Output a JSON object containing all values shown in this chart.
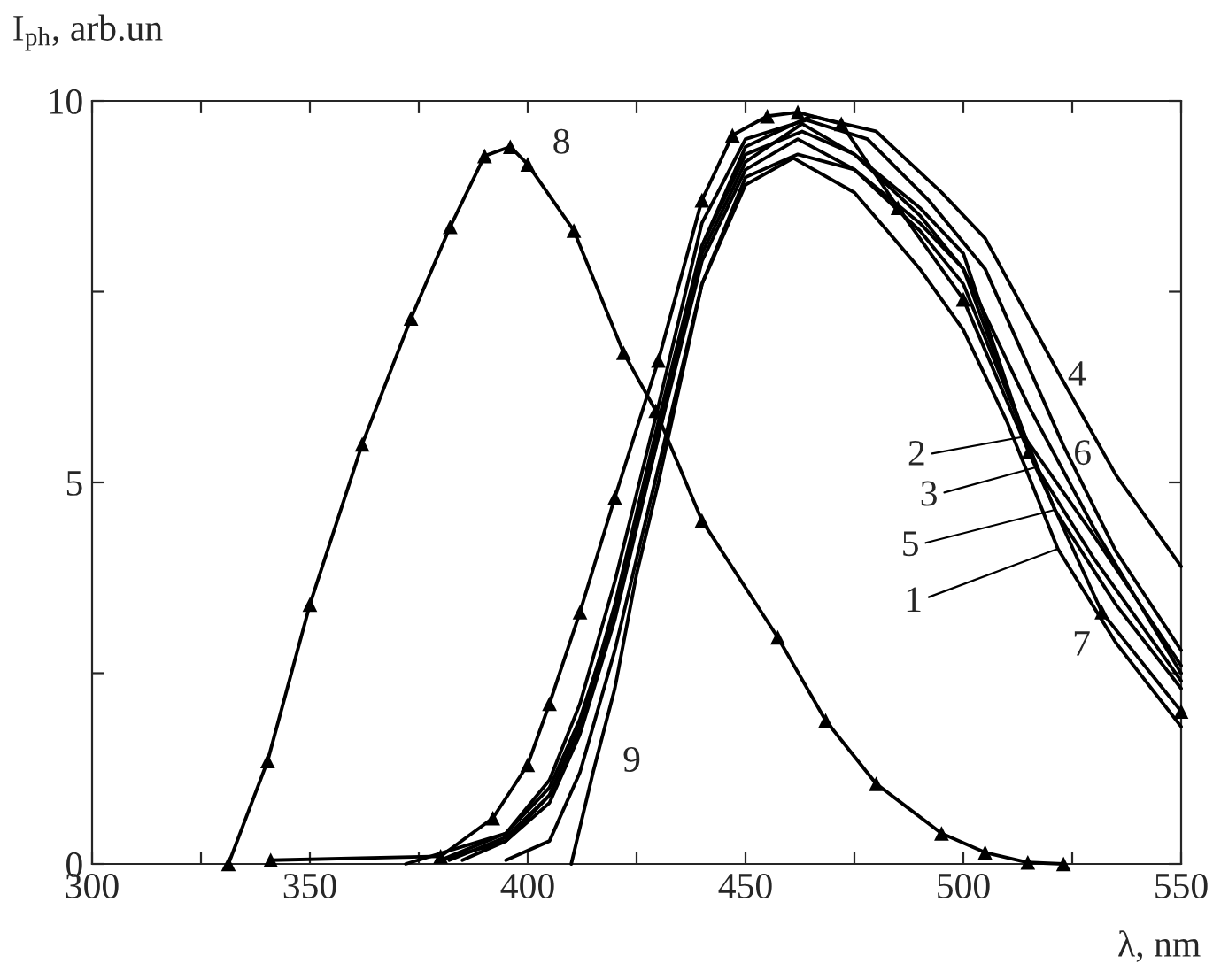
{
  "chart_data": {
    "type": "line",
    "xlabel": "λ, nm",
    "ylabel": "I$_{ph}$, arb.un",
    "xlim": [
      300,
      550
    ],
    "ylim": [
      0,
      10
    ],
    "xticks": [
      300,
      {
        "value": 325,
        "label": null
      },
      350,
      {
        "value": 375,
        "label": null
      },
      400,
      {
        "value": 425,
        "label": null
      },
      450,
      {
        "value": 475,
        "label": null
      },
      500,
      {
        "value": 525,
        "label": null
      },
      550
    ],
    "yticks": [
      0,
      {
        "value": 2.5,
        "label": null
      },
      5,
      {
        "value": 7.5,
        "label": null
      },
      10
    ],
    "grid": false,
    "legend": false,
    "line_style": "solid",
    "series": [
      {
        "color": "#000000",
        "x": [
          395,
          405,
          412,
          420,
          430,
          440,
          450,
          461,
          475,
          490,
          500,
          510,
          521.7,
          535,
          550
        ],
        "values": [
          0.05,
          0.3,
          1.2,
          2.8,
          5.2,
          7.6,
          8.9,
          9.25,
          8.8,
          7.8,
          7.0,
          5.8,
          4.13,
          2.9,
          1.8
        ]
      },
      {
        "color": "#000000",
        "x": [
          380,
          395,
          405,
          412,
          420,
          430,
          440,
          450,
          463,
          475,
          490,
          500,
          514,
          530,
          550
        ],
        "values": [
          0.05,
          0.3,
          0.9,
          1.8,
          3.4,
          5.8,
          8.1,
          9.3,
          9.6,
          9.3,
          8.6,
          8.0,
          5.6,
          4.3,
          2.6
        ]
      },
      {
        "color": "#000000",
        "x": [
          380,
          395,
          405,
          412,
          420,
          430,
          440,
          450,
          463,
          475,
          490,
          500,
          516.8,
          530,
          550
        ],
        "values": [
          0.05,
          0.4,
          1.0,
          1.9,
          3.3,
          5.7,
          8.0,
          9.2,
          9.7,
          9.3,
          8.5,
          7.8,
          5.2,
          4.0,
          2.4
        ]
      },
      {
        "color": "#000000",
        "x": [
          385,
          395,
          405,
          412,
          420,
          430,
          440,
          450,
          465,
          480,
          495,
          505,
          521.7,
          535,
          550
        ],
        "values": [
          0.05,
          0.3,
          0.8,
          1.7,
          3.2,
          5.6,
          8.1,
          9.4,
          9.8,
          9.6,
          8.8,
          8.2,
          6.45,
          5.1,
          3.9
        ]
      },
      {
        "color": "#000000",
        "x": [
          382,
          395,
          405,
          412,
          420,
          430,
          440,
          450,
          462,
          475,
          490,
          500,
          521,
          535,
          550
        ],
        "values": [
          0.05,
          0.35,
          0.9,
          1.8,
          3.3,
          5.6,
          7.9,
          9.1,
          9.5,
          9.1,
          8.3,
          7.6,
          4.64,
          3.4,
          2.3
        ]
      },
      {
        "color": "#000000",
        "x": [
          372,
          395,
          405,
          412,
          420,
          430,
          440,
          450,
          464,
          478,
          492,
          505,
          523,
          535,
          550
        ],
        "values": [
          0.0,
          0.4,
          1.1,
          2.1,
          3.7,
          6.0,
          8.4,
          9.5,
          9.75,
          9.5,
          8.7,
          7.8,
          5.48,
          4.1,
          2.8
        ]
      },
      {
        "color": "#000000",
        "marker": "triangle",
        "x": [
          341,
          380,
          392,
          400,
          405,
          412,
          420,
          430,
          440,
          447,
          455,
          462,
          472,
          485,
          500,
          515,
          531.8,
          550
        ],
        "values": [
          0.05,
          0.1,
          0.6,
          1.3,
          2.1,
          3.3,
          4.8,
          6.6,
          8.7,
          9.55,
          9.8,
          9.85,
          9.7,
          8.6,
          7.4,
          5.4,
          3.3,
          2.0
        ]
      },
      {
        "color": "#000000",
        "marker": "triangle",
        "x": [
          331.3,
          340.3,
          350,
          362,
          373.2,
          382.2,
          390.1,
          396,
          400,
          410.6,
          422,
          429.4,
          440,
          457.4,
          468.4,
          480,
          495,
          505,
          514.8,
          523
        ],
        "values": [
          0,
          1.35,
          3.4,
          5.5,
          7.15,
          8.35,
          9.28,
          9.4,
          9.17,
          8.3,
          6.7,
          5.94,
          4.5,
          2.97,
          1.88,
          1.05,
          0.4,
          0.15,
          0.02,
          0
        ]
      },
      {
        "color": "#000000",
        "x": [
          410,
          415,
          420,
          425,
          430,
          440,
          450,
          462,
          475,
          490,
          500,
          515,
          530,
          550
        ],
        "values": [
          0,
          1.2,
          2.3,
          3.8,
          5.0,
          7.6,
          9.0,
          9.3,
          9.1,
          8.4,
          7.8,
          6.0,
          4.4,
          2.5
        ]
      }
    ],
    "annotations": [
      {
        "text": "1",
        "x": 521.7,
        "y": 4.13
      },
      {
        "text": "2",
        "x": 514,
        "y": 5.6
      },
      {
        "text": "3",
        "x": 516.8,
        "y": 5.2
      },
      {
        "text": "4",
        "x": 521.7,
        "y": 6.45
      },
      {
        "text": "5",
        "x": 521,
        "y": 4.64
      },
      {
        "text": "6",
        "x": 523,
        "y": 5.48
      },
      {
        "text": "7",
        "x": 531.8,
        "y": 3.3
      },
      {
        "text": "8",
        "x": 400,
        "y": 9.17
      },
      {
        "text": "9",
        "x": 415,
        "y": 1.2
      }
    ]
  }
}
